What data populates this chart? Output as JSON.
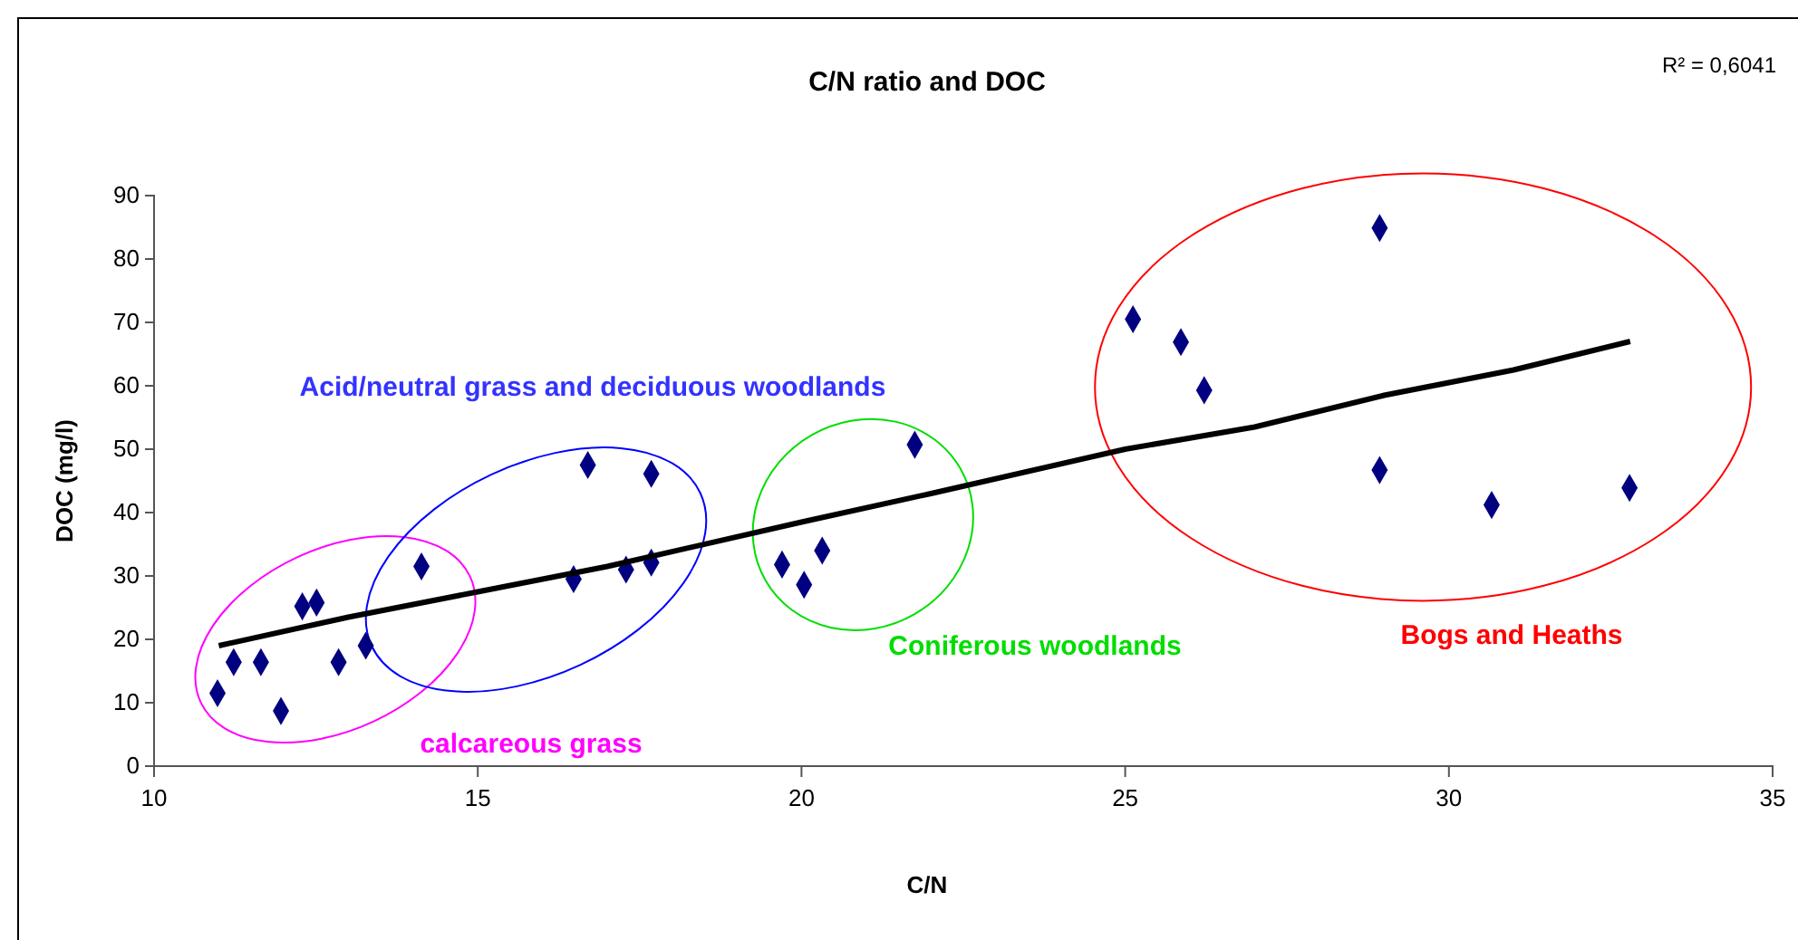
{
  "chart_data": {
    "type": "scatter",
    "title": "C/N ratio and DOC",
    "xlabel": "C/N",
    "ylabel": "DOC (mg/l)",
    "xlim": [
      10,
      35
    ],
    "xticks": [
      10,
      15,
      20,
      25,
      30,
      35
    ],
    "ylim": [
      0,
      90
    ],
    "yticks": [
      0,
      10,
      20,
      30,
      40,
      50,
      60,
      70,
      80,
      90
    ],
    "grid": false,
    "marker": "diamond",
    "series": [
      {
        "color": "#000080",
        "x": [
          10.98,
          11.23,
          11.65,
          11.96,
          12.29,
          12.51,
          12.85,
          13.27,
          14.13,
          16.48,
          16.7,
          17.29,
          17.68,
          17.68,
          19.7,
          20.04,
          20.32,
          21.75,
          25.12,
          25.86,
          26.22,
          28.93,
          28.93,
          30.66,
          32.79
        ],
        "values": [
          11.5,
          16.4,
          16.4,
          8.7,
          25.2,
          25.8,
          16.4,
          19,
          31.5,
          29.5,
          47.5,
          31,
          32.1,
          46.1,
          31.8,
          28.6,
          34,
          50.7,
          70.5,
          66.9,
          59.3,
          84.9,
          46.7,
          41.2,
          43.9
        ]
      },
      {
        "type": "line",
        "color": "#000000",
        "marker": "none",
        "line_style": "solid",
        "x": [
          11,
          13,
          15,
          17,
          20,
          22,
          25,
          27,
          29,
          31,
          32.8
        ],
        "values": [
          19,
          23.5,
          27.5,
          31.5,
          38.5,
          43,
          50,
          53.5,
          58.5,
          62.5,
          67
        ]
      }
    ],
    "annotations": [
      "R² = 0,6041",
      "Acid/neutral grass and deciduous woodlands",
      "calcareous grass",
      "Coniferous woodlands",
      "Bogs and Heaths"
    ]
  }
}
